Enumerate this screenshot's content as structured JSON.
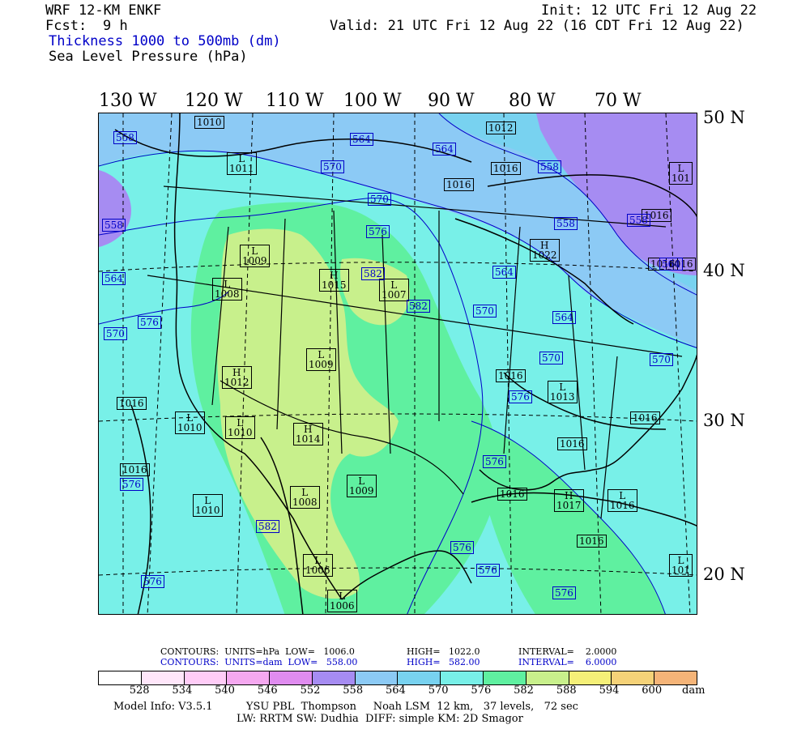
{
  "header": {
    "model": "WRF 12-KM ENKF",
    "fcst_label": "Fcst:",
    "fcst_value": "9 h",
    "field1": "Thickness 1000 to 500mb (dm)",
    "field2": "Sea Level Pressure (hPa)",
    "init": "Init: 12 UTC Fri 12 Aug 22",
    "valid": "Valid: 21 UTC Fri 12 Aug 22 (16 CDT Fri 12 Aug 22)"
  },
  "colors": {
    "thickness_contour": "#0000c8",
    "pressure_contour": "#000000",
    "land_dry": "#c8f08c",
    "mid_green": "#5ff0a0",
    "cyan": "#78f0e8",
    "light_blue": "#78d2f0",
    "sky": "#8ccaf5",
    "violet": "#a68cf2"
  },
  "map": {
    "longitude_labels": [
      "130 W",
      "120 W",
      "110 W",
      "100 W",
      "90 W",
      "80 W",
      "70 W"
    ],
    "latitude_labels": [
      "50 N",
      "40 N",
      "30 N",
      "20 N"
    ],
    "pressure_labels": [
      {
        "text": "1010"
      },
      {
        "text": "L\n1011"
      },
      {
        "text": "1012"
      },
      {
        "text": "1016"
      },
      {
        "text": "1016"
      },
      {
        "text": "L\n101"
      },
      {
        "text": "1016"
      },
      {
        "text": "H\n1022"
      },
      {
        "text": "1016"
      },
      {
        "text": "1016"
      },
      {
        "text": "L\n1009"
      },
      {
        "text": "L\n1008"
      },
      {
        "text": "H\n1015"
      },
      {
        "text": "L\n1007"
      },
      {
        "text": "L\n1009"
      },
      {
        "text": "H\n1012"
      },
      {
        "text": "1016"
      },
      {
        "text": "L\n1010"
      },
      {
        "text": "L\n1010"
      },
      {
        "text": "H\n1014"
      },
      {
        "text": "1016"
      },
      {
        "text": "1016"
      },
      {
        "text": "L\n1013"
      },
      {
        "text": "1016"
      },
      {
        "text": "1016"
      },
      {
        "text": "L\n1009"
      },
      {
        "text": "L\n1008"
      },
      {
        "text": "1016"
      },
      {
        "text": "H\n1017"
      },
      {
        "text": "L\n1016"
      },
      {
        "text": "L\n1010"
      },
      {
        "text": "1016"
      },
      {
        "text": "L\n1006"
      },
      {
        "text": "L\n1006"
      },
      {
        "text": "L\n101"
      }
    ],
    "thickness_labels": [
      {
        "text": "558"
      },
      {
        "text": "564"
      },
      {
        "text": "564"
      },
      {
        "text": "570"
      },
      {
        "text": "570"
      },
      {
        "text": "558"
      },
      {
        "text": "558"
      },
      {
        "text": "558"
      },
      {
        "text": "558"
      },
      {
        "text": "576"
      },
      {
        "text": "564"
      },
      {
        "text": "564"
      },
      {
        "text": "564"
      },
      {
        "text": "582"
      },
      {
        "text": "582"
      },
      {
        "text": "570"
      },
      {
        "text": "570"
      },
      {
        "text": "576"
      },
      {
        "text": "564"
      },
      {
        "text": "570"
      },
      {
        "text": "570"
      },
      {
        "text": "576"
      },
      {
        "text": "576"
      },
      {
        "text": "576"
      },
      {
        "text": "582"
      },
      {
        "text": "576"
      },
      {
        "text": "576"
      },
      {
        "text": "576"
      },
      {
        "text": "576"
      }
    ]
  },
  "info": {
    "line1_a": "CONTOURS:  UNITS=hPa  LOW=   1006.0",
    "line1_b": "HIGH=   1022.0",
    "line1_c": "INTERVAL=    2.0000",
    "line2_a": "CONTOURS:  UNITS=dam  LOW=   558.00",
    "line2_b": "HIGH=   582.00",
    "line2_c": "INTERVAL=    6.0000"
  },
  "colorbar": {
    "colors": [
      "#ffffff",
      "#ffe6fa",
      "#ffccf7",
      "#f5a8f0",
      "#e08cf0",
      "#a68cf2",
      "#8ccaf5",
      "#78d2f0",
      "#78f0e8",
      "#5ff0a0",
      "#c8f08c",
      "#f5f078",
      "#f5d278",
      "#f5b478"
    ],
    "ticks": [
      "528",
      "534",
      "540",
      "546",
      "552",
      "558",
      "564",
      "570",
      "576",
      "582",
      "588",
      "594",
      "600"
    ],
    "unit": "dam"
  },
  "footer": {
    "line1": "Model Info: V3.5.1          YSU PBL  Thompson     Noah LSM  12 km,   37 levels,   72 sec",
    "line2": "LW: RRTM SW: Dudhia  DIFF: simple KM: 2D Smagor"
  }
}
